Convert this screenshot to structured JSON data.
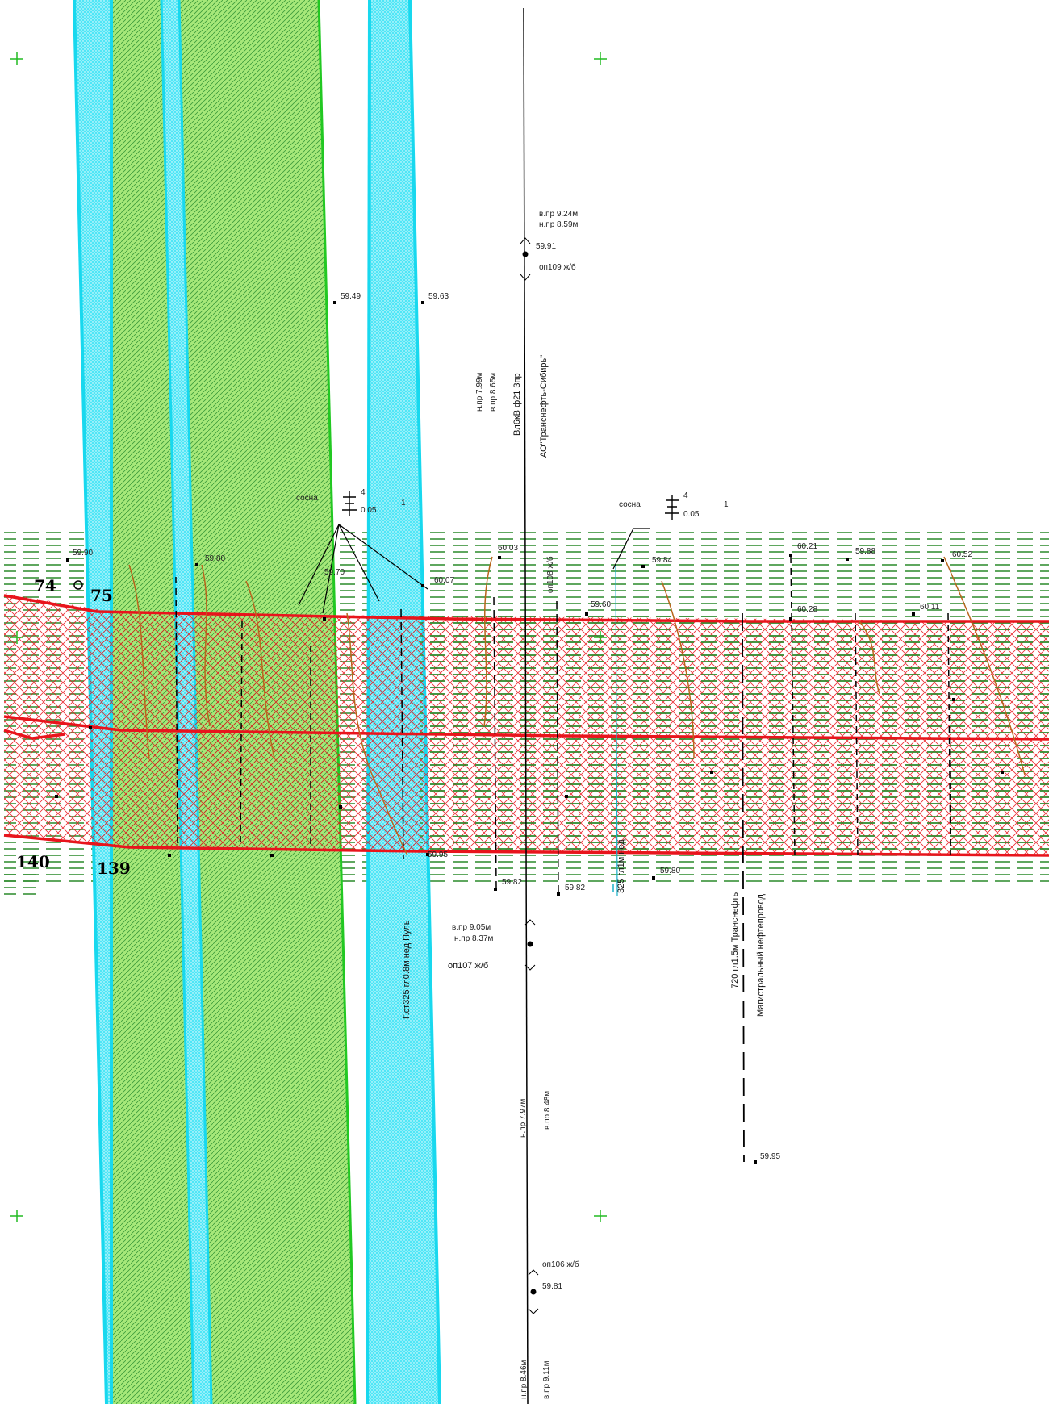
{
  "corners": {
    "n74": "74",
    "n75": "75",
    "n140": "140",
    "n139": "139"
  },
  "trees": {
    "left": {
      "name": "сосна",
      "count": "4",
      "dia": "0.05",
      "num": "1"
    },
    "right": {
      "name": "сосна",
      "count": "4",
      "dia": "0.05",
      "num": "1"
    }
  },
  "powerline": {
    "top_upper": "в.пр 9.24м",
    "top_lower": "н.пр 8.59м",
    "top_elev": "59.91",
    "top_pole": "оп109 ж/б",
    "span1_a": "н.пр 7.99м",
    "span1_b": "в.пр 8.65м",
    "name": "Вл6кВ ф21 3пр",
    "owner": "АО\"Транснефть-Сибирь\"",
    "mid_upper": "в.пр 9.05м",
    "mid_lower": "н.пр 8.37м",
    "mid_pole": "оп107 ж/б",
    "span2_a": "н.пр 7.97м",
    "span2_b": "в.пр 8.48м",
    "bot_pole": "оп106 ж/б",
    "bot_elev": "59.81",
    "span3_a": "н.пр 8.46м",
    "span3_b": "в.пр 9.11м",
    "pole108": "оп108 ж/б"
  },
  "pipelines": {
    "gas": "Г.ст325 гл0.8м нед Пуль",
    "pipe325": "325 гл1м нед",
    "oil_name": "Магистральный нефтепровод",
    "oil_desc": "720 гл1.5м Транснефть"
  },
  "elevations": {
    "e5949": "59.49",
    "e5963": "59.63",
    "e5990": "59.90",
    "e5980a": "59.80",
    "e6003": "60.03",
    "e5984": "59.84",
    "e6021": "60.21",
    "e5988": "59.88",
    "e6052": "60.52",
    "e6007": "60.07",
    "e5960": "59.60",
    "e6028": "60.28",
    "e6011": "60.11",
    "e5982a": "59.82",
    "e5982b": "59.82",
    "e5980b": "59.80",
    "e5995a": "59.95",
    "e5995b": "59.95",
    "e5970": "59.70"
  },
  "colors": {
    "zone_red": "#e8141c",
    "hatch_green": "#2a8a2a",
    "cyan": "#18d8ee",
    "green_fill": "#a6e879",
    "green_line": "#22c822",
    "contour": "#b8661c"
  }
}
